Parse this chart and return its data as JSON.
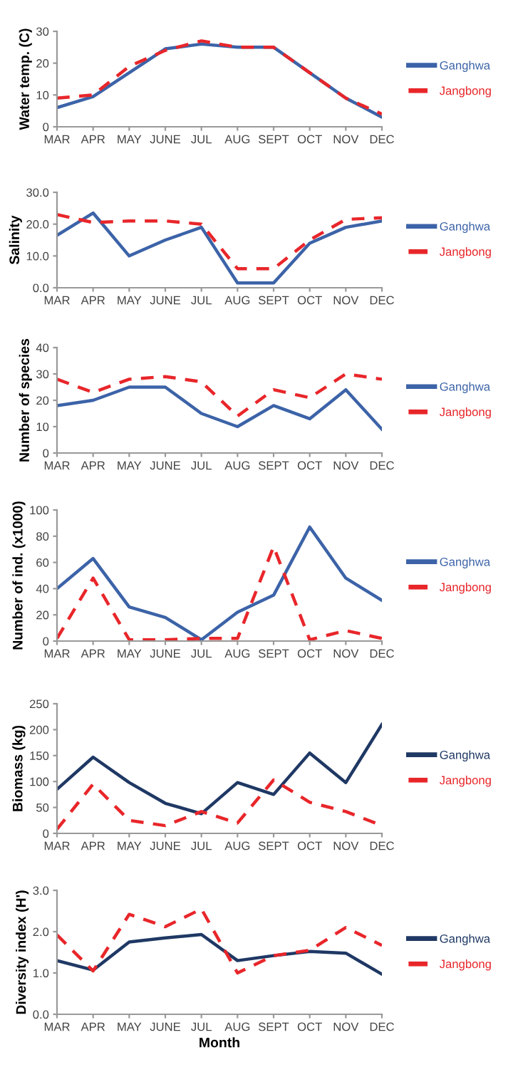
{
  "chart_data": [
    {
      "type": "line",
      "ylabel": "Water temp. (C)",
      "categories": [
        "MAR",
        "APR",
        "MAY",
        "JUNE",
        "JUL",
        "AUG",
        "SEPT",
        "OCT",
        "NOV",
        "DEC"
      ],
      "ylim": [
        0,
        30
      ],
      "yticks": [
        0,
        10,
        20,
        30
      ],
      "legend": "right",
      "series": [
        {
          "name": "Ganghwa",
          "color": "#3c63a8",
          "line_style": "solid",
          "values": [
            6,
            9.5,
            17,
            24.5,
            26,
            25,
            25,
            17,
            9,
            3
          ]
        },
        {
          "name": "Jangbong",
          "color": "#e8262a",
          "line_style": "dashed",
          "values": [
            9,
            10,
            19,
            24,
            27,
            25,
            25,
            17,
            9,
            4
          ]
        }
      ]
    },
    {
      "type": "line",
      "ylabel": "Salinity",
      "categories": [
        "MAR",
        "APR",
        "MAY",
        "JUNE",
        "JUL",
        "AUG",
        "SEPT",
        "OCT",
        "NOV",
        "DEC"
      ],
      "ylim": [
        0,
        30
      ],
      "yticks": [
        {
          "value": 0,
          "label": "0.0"
        },
        {
          "value": 10,
          "label": "10.0"
        },
        {
          "value": 20,
          "label": "20.0"
        },
        {
          "value": 30,
          "label": "30.0"
        }
      ],
      "legend": "right",
      "series": [
        {
          "name": "Ganghwa",
          "color": "#3c63a8",
          "line_style": "solid",
          "values": [
            16.5,
            23.5,
            10,
            15,
            19,
            1.5,
            1.5,
            14,
            19,
            21
          ]
        },
        {
          "name": "Jangbong",
          "color": "#e8262a",
          "line_style": "dashed",
          "values": [
            23,
            20.5,
            21,
            21,
            20,
            6,
            6,
            15,
            21.5,
            22
          ]
        }
      ]
    },
    {
      "type": "line",
      "ylabel": "Number of species",
      "categories": [
        "MAR",
        "APR",
        "MAY",
        "JUNE",
        "JUL",
        "AUG",
        "SEPT",
        "OCT",
        "NOV",
        "DEC"
      ],
      "ylim": [
        0,
        40
      ],
      "yticks": [
        0,
        10,
        20,
        30,
        40
      ],
      "legend": "right",
      "series": [
        {
          "name": "Ganghwa",
          "color": "#3c63a8",
          "line_style": "solid",
          "values": [
            18,
            20,
            25,
            25,
            15,
            10,
            18,
            13,
            24,
            9
          ]
        },
        {
          "name": "Jangbong",
          "color": "#e8262a",
          "line_style": "dashed",
          "values": [
            28,
            23,
            28,
            29,
            27,
            14,
            24,
            21,
            30,
            28
          ]
        }
      ]
    },
    {
      "type": "line",
      "ylabel": "Number of ind. (x1000)",
      "categories": [
        "MAR",
        "APR",
        "MAY",
        "JUNE",
        "JUL",
        "AUG",
        "SEPT",
        "OCT",
        "NOV",
        "DEC"
      ],
      "ylim": [
        0,
        100
      ],
      "yticks": [
        0,
        20,
        40,
        60,
        80,
        100
      ],
      "legend": "right",
      "series": [
        {
          "name": "Ganghwa",
          "color": "#3c63a8",
          "line_style": "solid",
          "values": [
            40,
            63,
            26,
            18,
            1,
            22,
            35,
            87,
            48,
            31
          ]
        },
        {
          "name": "Jangbong",
          "color": "#e8262a",
          "line_style": "dashed",
          "values": [
            2,
            48,
            1,
            1,
            2,
            2,
            72,
            1,
            8,
            2
          ]
        }
      ]
    },
    {
      "type": "line",
      "ylabel": "Biomass (kg)",
      "categories": [
        "MAR",
        "APR",
        "MAY",
        "JUNE",
        "JUL",
        "AUG",
        "SEPT",
        "OCT",
        "NOV",
        "DEC"
      ],
      "ylim": [
        0,
        250
      ],
      "yticks": [
        0,
        50,
        100,
        150,
        200,
        250
      ],
      "legend": "right",
      "series": [
        {
          "name": "Ganghwa",
          "color": "#1f3864",
          "line_style": "solid",
          "values": [
            85,
            147,
            98,
            58,
            38,
            98,
            75,
            155,
            98,
            210
          ]
        },
        {
          "name": "Jangbong",
          "color": "#e8262a",
          "line_style": "dashed",
          "values": [
            8,
            95,
            25,
            15,
            42,
            20,
            103,
            60,
            42,
            15
          ]
        }
      ]
    },
    {
      "type": "line",
      "ylabel": "Diversity index (H')",
      "xlabel": "Month",
      "categories": [
        "MAR",
        "APR",
        "MAY",
        "JUNE",
        "JUL",
        "AUG",
        "SEPT",
        "OCT",
        "NOV",
        "DEC"
      ],
      "ylim": [
        0,
        3
      ],
      "yticks": [
        {
          "value": 0,
          "label": "0.0"
        },
        {
          "value": 1,
          "label": "1.0"
        },
        {
          "value": 2,
          "label": "2.0"
        },
        {
          "value": 3,
          "label": "3.0"
        }
      ],
      "legend": "right",
      "series": [
        {
          "name": "Ganghwa",
          "color": "#1f3864",
          "line_style": "solid",
          "values": [
            1.3,
            1.07,
            1.75,
            1.85,
            1.93,
            1.3,
            1.42,
            1.52,
            1.48,
            0.97
          ]
        },
        {
          "name": "Jangbong",
          "color": "#e8262a",
          "line_style": "dashed",
          "values": [
            1.92,
            1.05,
            2.42,
            2.12,
            2.55,
            1.0,
            1.42,
            1.55,
            2.1,
            1.67
          ]
        }
      ]
    }
  ]
}
